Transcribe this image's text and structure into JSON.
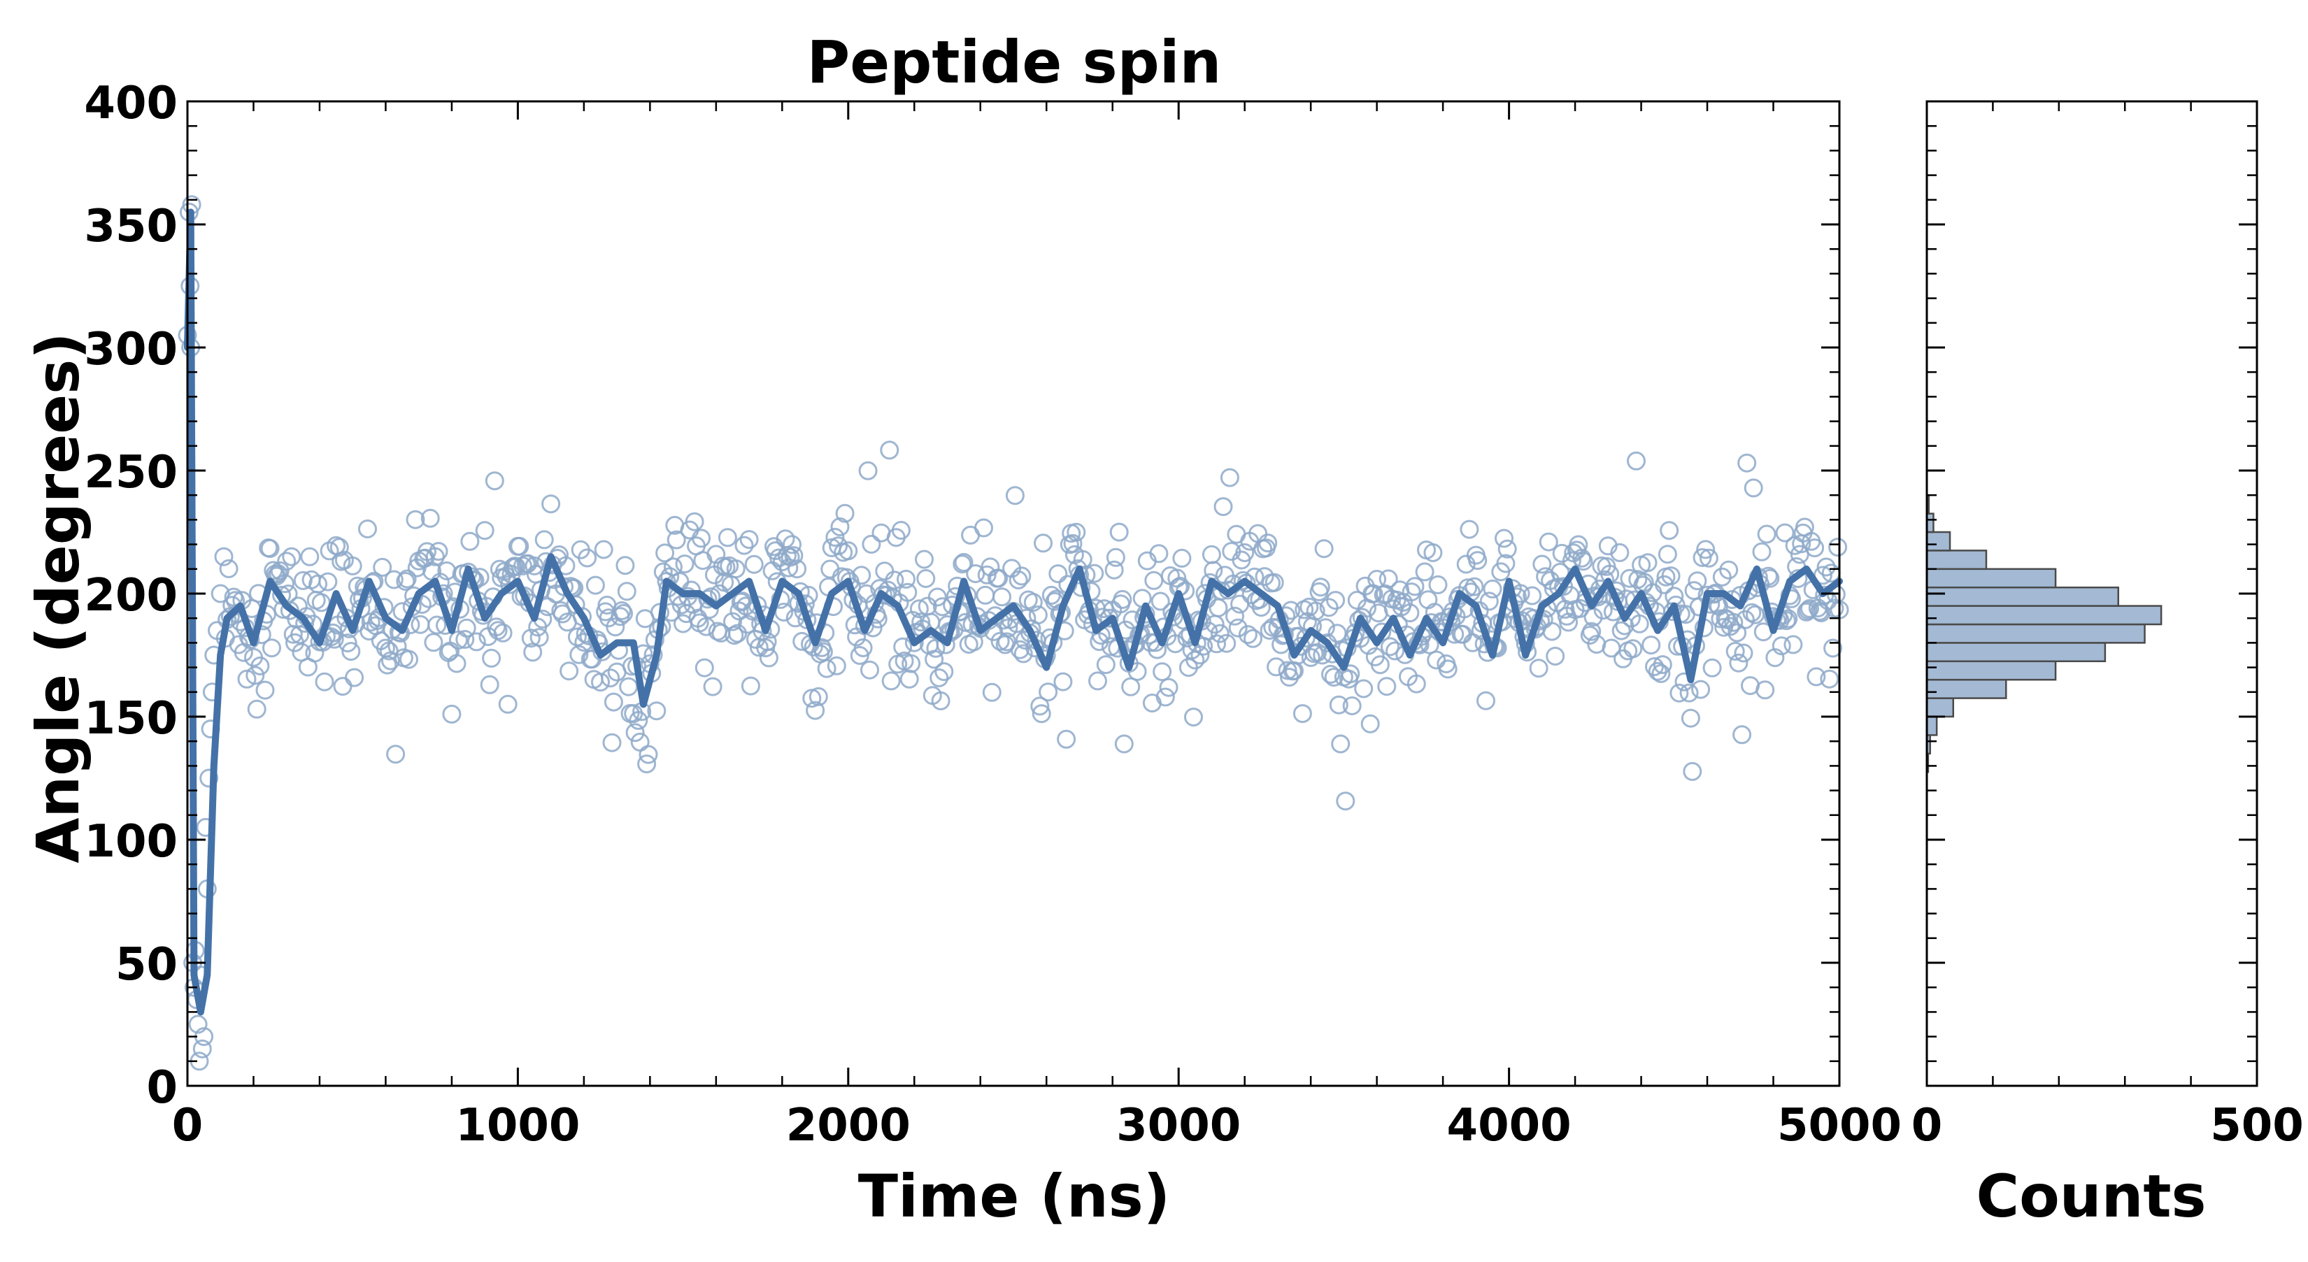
{
  "colors": {
    "series": "#4472a8",
    "marker_stroke": "#8ea9c9",
    "hist_fill": "#a3b9d4",
    "hist_stroke": "#4a4a4a",
    "axis": "#000000"
  },
  "chart_data": [
    {
      "type": "scatter",
      "title": "Peptide spin",
      "xlabel": "Time (ns)",
      "ylabel": "Angle (degrees)",
      "xlim": [
        0,
        5000
      ],
      "ylim": [
        0,
        400
      ],
      "xticks": [
        0,
        1000,
        2000,
        3000,
        4000,
        5000
      ],
      "xtick_labels": [
        "0",
        "1000",
        "2000",
        "3000",
        "4000",
        "5000"
      ],
      "yticks": [
        0,
        50,
        100,
        150,
        200,
        250,
        300,
        350,
        400
      ],
      "ytick_labels": [
        "0",
        "50",
        "100",
        "150",
        "200",
        "250",
        "300",
        "350",
        "400"
      ],
      "grid": false,
      "series": [
        {
          "kind": "markers",
          "marker": "open-circle",
          "description_values": "raw angle samples, about every 10 ns",
          "sample_interval_ns": 10,
          "initial_phase": [
            [
              0,
              305
            ],
            [
              5,
              355
            ],
            [
              8,
              325
            ],
            [
              10,
              300
            ],
            [
              13,
              358
            ],
            [
              16,
              50
            ],
            [
              20,
              40
            ],
            [
              24,
              55
            ],
            [
              28,
              35
            ],
            [
              32,
              25
            ],
            [
              36,
              10
            ],
            [
              40,
              45
            ],
            [
              45,
              15
            ],
            [
              50,
              20
            ],
            [
              55,
              105
            ],
            [
              60,
              80
            ],
            [
              65,
              125
            ],
            [
              70,
              145
            ],
            [
              75,
              160
            ],
            [
              80,
              175
            ],
            [
              90,
              185
            ],
            [
              100,
              200
            ],
            [
              110,
              215
            ]
          ],
          "x_range": [
            0,
            5000
          ],
          "central_value": 195,
          "typical_spread": [
            150,
            230
          ]
        },
        {
          "kind": "line",
          "description_values": "running average of the angle",
          "points": [
            [
              0,
              300
            ],
            [
              10,
              355
            ],
            [
              20,
              45
            ],
            [
              40,
              30
            ],
            [
              60,
              45
            ],
            [
              80,
              130
            ],
            [
              100,
              175
            ],
            [
              120,
              190
            ],
            [
              160,
              195
            ],
            [
              200,
              180
            ],
            [
              250,
              205
            ],
            [
              300,
              195
            ],
            [
              350,
              190
            ],
            [
              400,
              180
            ],
            [
              450,
              200
            ],
            [
              500,
              185
            ],
            [
              550,
              205
            ],
            [
              600,
              190
            ],
            [
              650,
              185
            ],
            [
              700,
              200
            ],
            [
              750,
              205
            ],
            [
              800,
              185
            ],
            [
              850,
              210
            ],
            [
              900,
              190
            ],
            [
              950,
              200
            ],
            [
              1000,
              205
            ],
            [
              1050,
              190
            ],
            [
              1100,
              215
            ],
            [
              1150,
              200
            ],
            [
              1200,
              190
            ],
            [
              1250,
              175
            ],
            [
              1300,
              180
            ],
            [
              1350,
              180
            ],
            [
              1380,
              155
            ],
            [
              1420,
              175
            ],
            [
              1450,
              205
            ],
            [
              1500,
              200
            ],
            [
              1550,
              200
            ],
            [
              1600,
              195
            ],
            [
              1650,
              200
            ],
            [
              1700,
              205
            ],
            [
              1750,
              185
            ],
            [
              1800,
              205
            ],
            [
              1850,
              200
            ],
            [
              1900,
              180
            ],
            [
              1950,
              200
            ],
            [
              2000,
              205
            ],
            [
              2050,
              185
            ],
            [
              2100,
              200
            ],
            [
              2150,
              195
            ],
            [
              2200,
              180
            ],
            [
              2250,
              185
            ],
            [
              2300,
              180
            ],
            [
              2350,
              205
            ],
            [
              2400,
              185
            ],
            [
              2450,
              190
            ],
            [
              2500,
              195
            ],
            [
              2550,
              185
            ],
            [
              2600,
              170
            ],
            [
              2650,
              195
            ],
            [
              2700,
              210
            ],
            [
              2750,
              185
            ],
            [
              2800,
              190
            ],
            [
              2850,
              170
            ],
            [
              2900,
              195
            ],
            [
              2950,
              180
            ],
            [
              3000,
              200
            ],
            [
              3050,
              180
            ],
            [
              3100,
              205
            ],
            [
              3150,
              200
            ],
            [
              3200,
              205
            ],
            [
              3250,
              200
            ],
            [
              3300,
              195
            ],
            [
              3350,
              175
            ],
            [
              3400,
              185
            ],
            [
              3450,
              180
            ],
            [
              3500,
              170
            ],
            [
              3550,
              190
            ],
            [
              3600,
              180
            ],
            [
              3650,
              190
            ],
            [
              3700,
              175
            ],
            [
              3750,
              190
            ],
            [
              3800,
              180
            ],
            [
              3850,
              200
            ],
            [
              3900,
              195
            ],
            [
              3950,
              175
            ],
            [
              4000,
              205
            ],
            [
              4050,
              175
            ],
            [
              4100,
              195
            ],
            [
              4150,
              200
            ],
            [
              4200,
              210
            ],
            [
              4250,
              195
            ],
            [
              4300,
              205
            ],
            [
              4350,
              190
            ],
            [
              4400,
              200
            ],
            [
              4450,
              185
            ],
            [
              4500,
              195
            ],
            [
              4550,
              165
            ],
            [
              4600,
              200
            ],
            [
              4650,
              200
            ],
            [
              4700,
              195
            ],
            [
              4750,
              210
            ],
            [
              4800,
              185
            ],
            [
              4850,
              205
            ],
            [
              4900,
              210
            ],
            [
              4950,
              200
            ],
            [
              5000,
              205
            ]
          ]
        }
      ]
    },
    {
      "type": "bar",
      "orientation": "horizontal",
      "xlabel": "Counts",
      "xlim": [
        0,
        500
      ],
      "xticks": [
        0,
        500
      ],
      "xtick_labels": [
        "0",
        "500"
      ],
      "ylim": [
        0,
        400
      ],
      "bin_width": 7.5,
      "bins": [
        {
          "from": 127.5,
          "to": 135,
          "count": 2
        },
        {
          "from": 135,
          "to": 142.5,
          "count": 5
        },
        {
          "from": 142.5,
          "to": 150,
          "count": 15
        },
        {
          "from": 150,
          "to": 157.5,
          "count": 40
        },
        {
          "from": 157.5,
          "to": 165,
          "count": 120
        },
        {
          "from": 165,
          "to": 172.5,
          "count": 195
        },
        {
          "from": 172.5,
          "to": 180,
          "count": 270
        },
        {
          "from": 180,
          "to": 187.5,
          "count": 330
        },
        {
          "from": 187.5,
          "to": 195,
          "count": 355
        },
        {
          "from": 195,
          "to": 202.5,
          "count": 290
        },
        {
          "from": 202.5,
          "to": 210,
          "count": 195
        },
        {
          "from": 210,
          "to": 217.5,
          "count": 90
        },
        {
          "from": 217.5,
          "to": 225,
          "count": 35
        },
        {
          "from": 225,
          "to": 232.5,
          "count": 10
        },
        {
          "from": 232.5,
          "to": 240,
          "count": 3
        }
      ]
    }
  ]
}
